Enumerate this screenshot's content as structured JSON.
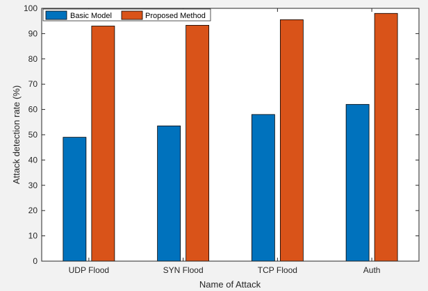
{
  "chart_data": {
    "type": "bar",
    "title": "",
    "xlabel": "Name of Attack",
    "ylabel": "Attack detection rate (%)",
    "categories": [
      "UDP Flood",
      "SYN Flood",
      "TCP Flood",
      "Auth"
    ],
    "series": [
      {
        "name": "Basic Model",
        "color": "#0072bd",
        "values": [
          49,
          53.5,
          58,
          62
        ]
      },
      {
        "name": "Proposed Method",
        "color": "#d95319",
        "values": [
          93,
          93.3,
          95.5,
          98
        ]
      }
    ],
    "ylim": [
      0,
      100
    ],
    "yticks": [
      "0",
      "10",
      "20",
      "30",
      "40",
      "50",
      "60",
      "70",
      "80",
      "90",
      "100"
    ],
    "grid": false,
    "legend_position": "top-left"
  }
}
